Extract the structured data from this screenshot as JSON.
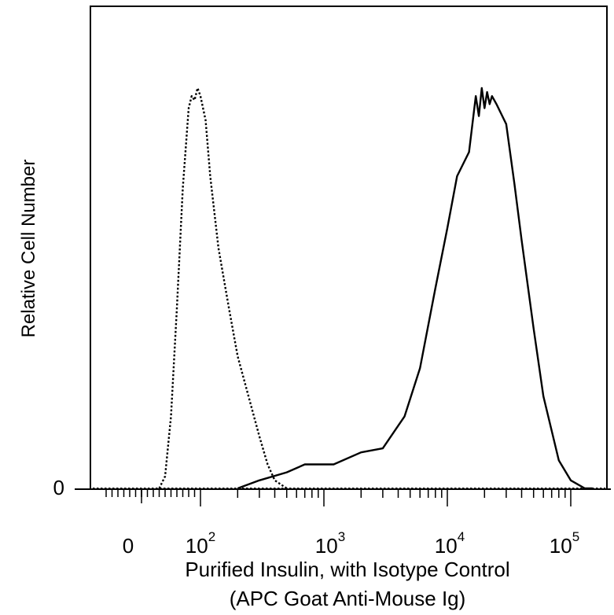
{
  "chart_data": {
    "type": "line",
    "ylabel": "Relative Cell Number",
    "xlabel_line1": "Purified Insulin, with Isotype Control",
    "xlabel_line2": "(APC Goat Anti-Mouse Ig)",
    "x_scale": "biexponential (log decades)",
    "x_tick_labels": [
      {
        "base": "0",
        "exp": "",
        "value": 0
      },
      {
        "base": "10",
        "exp": "2",
        "value": 100
      },
      {
        "base": "10",
        "exp": "3",
        "value": 1000
      },
      {
        "base": "10",
        "exp": "4",
        "value": 10000
      },
      {
        "base": "10",
        "exp": "5",
        "value": 100000
      }
    ],
    "y_tick_labels": [
      {
        "label": "0",
        "value": 0
      }
    ],
    "ylim": [
      0,
      100
    ],
    "grid": false,
    "series": [
      {
        "style": "dotted",
        "x": [
          30,
          40,
          50,
          60,
          70,
          80,
          85,
          90,
          95,
          100,
          110,
          120,
          140,
          170,
          200,
          250,
          300,
          350,
          400,
          500
        ],
        "y": [
          0,
          3,
          18,
          45,
          75,
          95,
          98,
          97,
          100,
          98,
          92,
          78,
          60,
          45,
          33,
          22,
          13,
          6,
          2,
          0
        ]
      },
      {
        "style": "solid",
        "x": [
          200,
          300,
          500,
          700,
          900,
          1200,
          2000,
          3000,
          4500,
          6000,
          8000,
          10000,
          12000,
          15000,
          17000,
          18000,
          19000,
          20000,
          21000,
          22000,
          23000,
          25000,
          30000,
          35000,
          40000,
          50000,
          60000,
          80000,
          100000,
          130000,
          150000
        ],
        "y": [
          0,
          2,
          4,
          6,
          6,
          6,
          9,
          10,
          18,
          30,
          50,
          65,
          78,
          84,
          98,
          93,
          100,
          95,
          99,
          96,
          98,
          96,
          91,
          76,
          62,
          40,
          23,
          7,
          2,
          0,
          0
        ]
      }
    ]
  }
}
